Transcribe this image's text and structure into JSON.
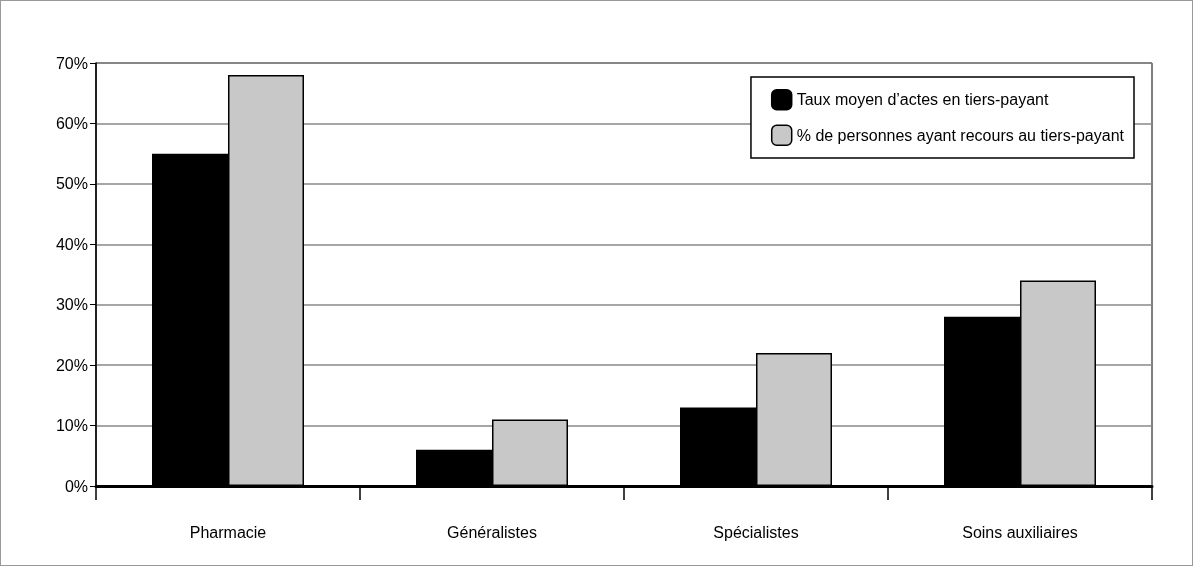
{
  "chart_data": {
    "type": "bar",
    "categories": [
      "Pharmacie",
      "Généralistes",
      "Spécialistes",
      "Soins auxiliaires"
    ],
    "series": [
      {
        "name": "Taux moyen d’actes en tiers-payant",
        "color": "#000000",
        "values": [
          55,
          6,
          13,
          28
        ]
      },
      {
        "name": "% de personnes ayant recours au tiers-payant",
        "color": "#c8c8c8",
        "values": [
          68,
          11,
          22,
          34
        ]
      }
    ],
    "ylim": [
      0,
      70
    ],
    "yticks": [
      {
        "value": 0,
        "label": "0%"
      },
      {
        "value": 10,
        "label": "10%"
      },
      {
        "value": 20,
        "label": "20%"
      },
      {
        "value": 30,
        "label": "30%"
      },
      {
        "value": 40,
        "label": "40%"
      },
      {
        "value": 50,
        "label": "50%"
      },
      {
        "value": 60,
        "label": "60%"
      },
      {
        "value": 70,
        "label": "70%"
      }
    ],
    "grid": "y",
    "legend": "top right"
  }
}
